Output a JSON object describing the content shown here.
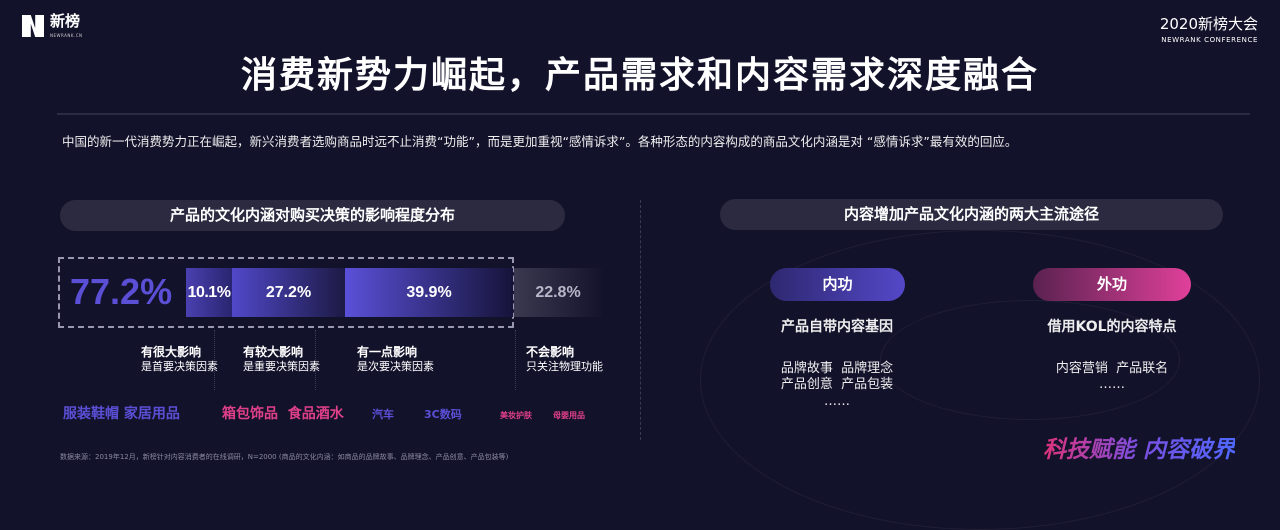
{
  "header": {
    "logo_text": "新榜",
    "logo_sub": "NEWRANK.CN",
    "conference": "2020新榜大会",
    "conference_sub": "NEWRANK CONFERENCE"
  },
  "title": "消费新势力崛起，产品需求和内容需求深度融合",
  "intro": "中国的新一代消费势力正在崛起，新兴消费者选购商品时远不止消费“功能”，而是更加重视“感情诉求”。各种形态的内容构成的商品文化内涵是对 “感情诉求”最有效的回应。",
  "left": {
    "heading": "产品的文化内涵对购买决策的影响程度分布",
    "total": "77.2%",
    "bars": [
      {
        "value": "10.1%",
        "percent": 10.1,
        "title": "有很大影响",
        "desc": "是首要决策因素"
      },
      {
        "value": "27.2%",
        "percent": 27.2,
        "title": "有较大影响",
        "desc": "是重要决策因素"
      },
      {
        "value": "39.9%",
        "percent": 39.9,
        "title": "有一点影响",
        "desc": "是次要决策因素"
      },
      {
        "value": "22.8%",
        "percent": 22.8,
        "title": "不会影响",
        "desc": "只关注物理功能"
      }
    ],
    "categories": [
      "服装鞋帽 家居用品",
      "箱包饰品  食品酒水",
      "汽车",
      "3C数码",
      "美妆护肤",
      "母婴用品"
    ],
    "source": "数据来源：2019年12月，新榜针对内容消费者的在线调研，N=2000 (商品的文化内涵：如商品的品牌故事、品牌理念、产品创意、产品包装等)"
  },
  "right": {
    "heading": "内容增加产品文化内涵的两大主流途径",
    "inner": {
      "label": "内功",
      "subtitle": "产品自带内容基因",
      "line1": "品牌故事  品牌理念",
      "line2": "产品创意  产品包装",
      "more": "……"
    },
    "outer": {
      "label": "外功",
      "subtitle": "借用KOL的内容特点",
      "line1": "内容营销  产品联名",
      "more": "……"
    }
  },
  "slogan": "科技赋能 内容破界",
  "colors": {
    "background": "#13122b",
    "purple": "#5b4fd6",
    "pink": "#e0408a"
  }
}
